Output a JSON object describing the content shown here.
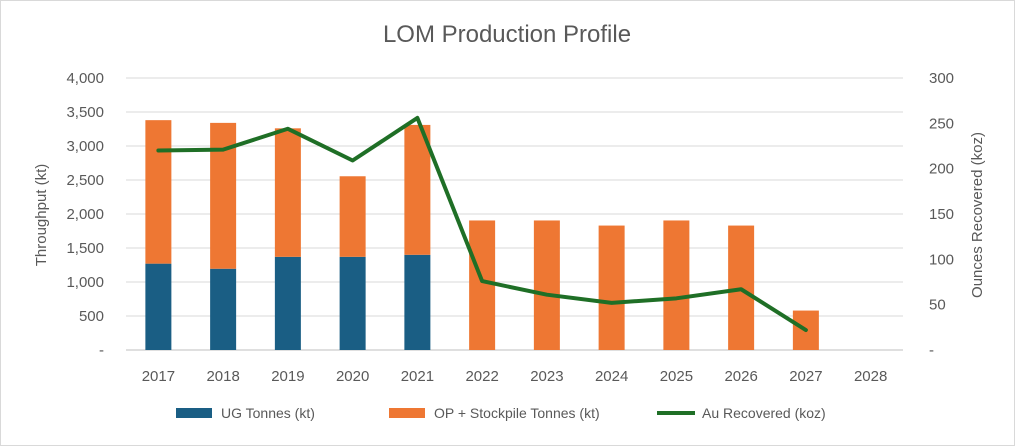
{
  "chart_data": {
    "type": "bar",
    "title": "LOM Production Profile",
    "categories": [
      "2017",
      "2018",
      "2019",
      "2020",
      "2021",
      "2022",
      "2023",
      "2024",
      "2025",
      "2026",
      "2027",
      "2028"
    ],
    "series": [
      {
        "name": "UG Tonnes (kt)",
        "type": "bar",
        "stacked": true,
        "axis": "left",
        "color": "#1a5e84",
        "values": [
          1270,
          1195,
          1370,
          1370,
          1400,
          0,
          0,
          0,
          0,
          0,
          0,
          0
        ]
      },
      {
        "name": "OP + Stockpile Tonnes (kt)",
        "type": "bar",
        "stacked": true,
        "axis": "left",
        "color": "#ee7733",
        "values": [
          2110,
          2145,
          1890,
          1185,
          1910,
          1905,
          1905,
          1830,
          1905,
          1830,
          580,
          0
        ]
      },
      {
        "name": "Au Recovered (koz)",
        "type": "line",
        "axis": "right",
        "color": "#1f6f26",
        "values": [
          220,
          221,
          244,
          209,
          256,
          76,
          61,
          52,
          57,
          67,
          22,
          null
        ]
      }
    ],
    "y_left": {
      "label": "Throughput (kt)",
      "range": [
        0,
        4000
      ],
      "ticks": [
        "-",
        "500",
        "1,000",
        "1,500",
        "2,000",
        "2,500",
        "3,000",
        "3,500",
        "4,000"
      ]
    },
    "y_right": {
      "label": "Ounces Recovered (koz)",
      "range": [
        0,
        300
      ],
      "ticks": [
        "-",
        "50",
        "100",
        "150",
        "200",
        "250",
        "300"
      ]
    },
    "grid": true,
    "legend_position": "bottom"
  }
}
